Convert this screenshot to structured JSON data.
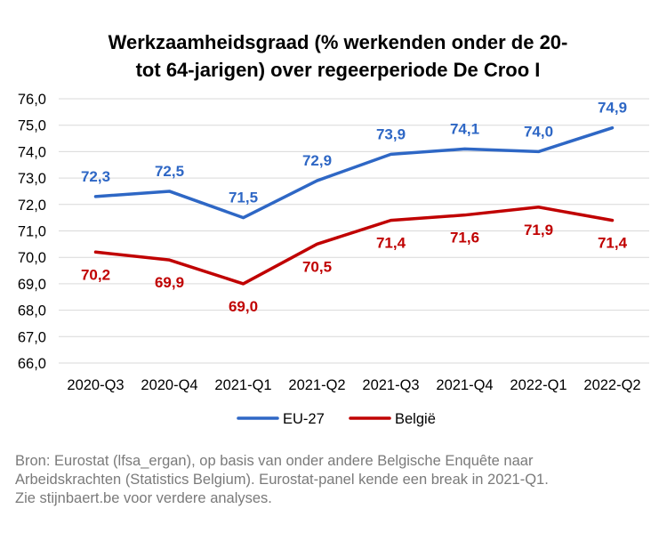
{
  "chart_data": {
    "type": "line",
    "title_lines": [
      "Werkzaamheidsgraad (% werkenden onder de 20-",
      "tot 64-jarigen) over regeerperiode De Croo I"
    ],
    "categories": [
      "2020-Q3",
      "2020-Q4",
      "2021-Q1",
      "2021-Q2",
      "2021-Q3",
      "2021-Q4",
      "2022-Q1",
      "2022-Q2"
    ],
    "series": [
      {
        "name": "EU-27",
        "color": "#2E67C5",
        "values": [
          72.3,
          72.5,
          71.5,
          72.9,
          73.9,
          74.1,
          74.0,
          74.9
        ],
        "labels": [
          "72,3",
          "72,5",
          "71,5",
          "72,9",
          "73,9",
          "74,1",
          "74,0",
          "74,9"
        ],
        "label_position": "above"
      },
      {
        "name": "België",
        "color": "#C00000",
        "values": [
          70.2,
          69.9,
          69.0,
          70.5,
          71.4,
          71.6,
          71.9,
          71.4
        ],
        "labels": [
          "70,2",
          "69,9",
          "69,0",
          "70,5",
          "71,4",
          "71,6",
          "71,9",
          "71,4"
        ],
        "label_position": "below"
      }
    ],
    "ylim": [
      66,
      76
    ],
    "yticks": [
      76,
      75,
      74,
      73,
      72,
      71,
      70,
      69,
      68,
      67,
      66
    ],
    "ytick_labels": [
      "76,0",
      "75,0",
      "74,0",
      "73,0",
      "72,0",
      "71,0",
      "70,0",
      "69,0",
      "68,0",
      "67,0",
      "66,0"
    ],
    "grid": true,
    "legend": "bottom"
  },
  "source_lines": [
    "Bron: Eurostat (lfsa_ergan), op basis van onder andere Belgische Enquête naar",
    "Arbeidskrachten (Statistics Belgium). Eurostat-panel kende een break in 2021-Q1.",
    "Zie stijnbaert.be voor verdere analyses."
  ]
}
